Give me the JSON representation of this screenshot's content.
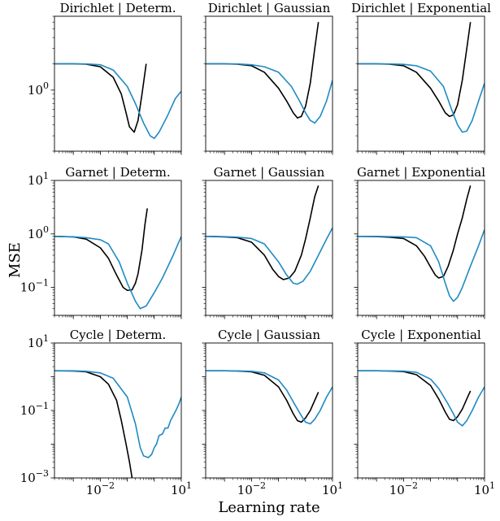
{
  "figure": {
    "xlabel": "Learning rate",
    "ylabel": "MSE",
    "xscale": "log",
    "yscale": "log",
    "xlim": [
      0.0002,
      10
    ],
    "colors": {
      "series_a": "#000000",
      "series_b": "#1f8ac4"
    }
  },
  "chart_data": [
    {
      "type": "line",
      "title": "Dirichlet | Determ.",
      "ylim": [
        0.2,
        7
      ],
      "yticks": [
        {
          "value": 1,
          "label": "10^0"
        }
      ],
      "xticks": [],
      "series": [
        {
          "color": "#000000",
          "x": [
            0.0002,
            0.001,
            0.003,
            0.01,
            0.03,
            0.06,
            0.09,
            0.12,
            0.18,
            0.25,
            0.35,
            0.5
          ],
          "y": [
            2.0,
            2.0,
            1.98,
            1.85,
            1.4,
            0.9,
            0.55,
            0.38,
            0.33,
            0.45,
            0.9,
            2.0
          ]
        },
        {
          "color": "#1f8ac4",
          "x": [
            0.0002,
            0.001,
            0.003,
            0.01,
            0.03,
            0.1,
            0.2,
            0.4,
            0.7,
            1.0,
            1.5,
            3,
            6,
            10
          ],
          "y": [
            2.0,
            2.0,
            1.99,
            1.95,
            1.7,
            1.1,
            0.7,
            0.42,
            0.3,
            0.28,
            0.33,
            0.5,
            0.8,
            0.97
          ]
        }
      ]
    },
    {
      "type": "line",
      "title": "Dirichlet | Gaussian",
      "ylim": [
        0.2,
        7
      ],
      "yticks": [],
      "xticks": [],
      "series": [
        {
          "color": "#000000",
          "x": [
            0.0002,
            0.001,
            0.003,
            0.01,
            0.03,
            0.1,
            0.2,
            0.35,
            0.5,
            0.7,
            1.0,
            1.5,
            2.2,
            3.0
          ],
          "y": [
            2.0,
            2.0,
            1.98,
            1.9,
            1.6,
            1.05,
            0.75,
            0.55,
            0.48,
            0.5,
            0.65,
            1.2,
            3.0,
            6.0
          ]
        },
        {
          "color": "#1f8ac4",
          "x": [
            0.0002,
            0.001,
            0.003,
            0.01,
            0.03,
            0.1,
            0.3,
            0.6,
            1.0,
            1.5,
            2.2,
            3.5,
            6,
            10
          ],
          "y": [
            2.0,
            2.0,
            1.99,
            1.95,
            1.85,
            1.6,
            1.1,
            0.75,
            0.55,
            0.45,
            0.42,
            0.5,
            0.75,
            1.3
          ]
        }
      ]
    },
    {
      "type": "line",
      "title": "Dirichlet | Exponential",
      "ylim": [
        0.2,
        7
      ],
      "yticks": [],
      "xticks": [],
      "series": [
        {
          "color": "#000000",
          "x": [
            0.0002,
            0.001,
            0.003,
            0.01,
            0.03,
            0.1,
            0.2,
            0.35,
            0.5,
            0.7,
            1.0,
            1.5,
            2.2,
            3.0
          ],
          "y": [
            2.0,
            2.0,
            1.98,
            1.9,
            1.6,
            1.05,
            0.75,
            0.55,
            0.5,
            0.52,
            0.68,
            1.3,
            3.0,
            6.0
          ]
        },
        {
          "color": "#1f8ac4",
          "x": [
            0.0002,
            0.001,
            0.003,
            0.01,
            0.03,
            0.1,
            0.3,
            0.6,
            1.0,
            1.5,
            2.2,
            3.5,
            6,
            10
          ],
          "y": [
            2.0,
            2.0,
            1.99,
            1.97,
            1.9,
            1.65,
            1.1,
            0.6,
            0.4,
            0.33,
            0.34,
            0.45,
            0.75,
            1.2
          ]
        }
      ]
    },
    {
      "type": "line",
      "title": "Garnet | Determ.",
      "ylim": [
        0.03,
        10
      ],
      "yticks": [
        {
          "value": 10,
          "label": "10^1"
        },
        {
          "value": 1,
          "label": "10^0"
        },
        {
          "value": 0.1,
          "label": "10^-1"
        }
      ],
      "xticks": [],
      "series": [
        {
          "color": "#000000",
          "x": [
            0.0002,
            0.001,
            0.003,
            0.01,
            0.02,
            0.04,
            0.07,
            0.1,
            0.15,
            0.2,
            0.25,
            0.35,
            0.45,
            0.55
          ],
          "y": [
            0.9,
            0.88,
            0.8,
            0.55,
            0.35,
            0.17,
            0.1,
            0.088,
            0.09,
            0.12,
            0.18,
            0.5,
            1.5,
            3.0
          ]
        },
        {
          "color": "#1f8ac4",
          "x": [
            0.0002,
            0.001,
            0.003,
            0.01,
            0.02,
            0.05,
            0.1,
            0.2,
            0.3,
            0.5,
            1,
            2,
            5,
            10
          ],
          "y": [
            0.9,
            0.88,
            0.85,
            0.78,
            0.65,
            0.3,
            0.12,
            0.055,
            0.04,
            0.045,
            0.08,
            0.15,
            0.4,
            0.9
          ]
        }
      ]
    },
    {
      "type": "line",
      "title": "Garnet | Gaussian",
      "ylim": [
        0.03,
        10
      ],
      "yticks": [],
      "xticks": [],
      "series": [
        {
          "color": "#000000",
          "x": [
            0.0002,
            0.001,
            0.003,
            0.01,
            0.03,
            0.06,
            0.1,
            0.15,
            0.25,
            0.4,
            0.7,
            1.0,
            1.5,
            2.2,
            3.0
          ],
          "y": [
            0.9,
            0.88,
            0.85,
            0.7,
            0.4,
            0.22,
            0.16,
            0.14,
            0.15,
            0.2,
            0.4,
            0.8,
            2.0,
            5.0,
            8.0
          ]
        },
        {
          "color": "#1f8ac4",
          "x": [
            0.0002,
            0.001,
            0.003,
            0.01,
            0.03,
            0.1,
            0.2,
            0.35,
            0.5,
            0.8,
            1.5,
            3,
            6,
            10
          ],
          "y": [
            0.9,
            0.89,
            0.87,
            0.82,
            0.65,
            0.3,
            0.17,
            0.12,
            0.115,
            0.13,
            0.2,
            0.4,
            0.8,
            1.3
          ]
        }
      ]
    },
    {
      "type": "line",
      "title": "Garnet | Exponential",
      "ylim": [
        0.03,
        10
      ],
      "yticks": [],
      "xticks": [],
      "series": [
        {
          "color": "#000000",
          "x": [
            0.0002,
            0.001,
            0.003,
            0.01,
            0.03,
            0.06,
            0.1,
            0.15,
            0.2,
            0.3,
            0.45,
            0.7,
            1.0,
            1.5,
            2.2,
            3.0
          ],
          "y": [
            0.9,
            0.89,
            0.87,
            0.82,
            0.6,
            0.38,
            0.24,
            0.17,
            0.15,
            0.16,
            0.25,
            0.5,
            1.0,
            2.0,
            4.5,
            8.0
          ]
        },
        {
          "color": "#1f8ac4",
          "x": [
            0.0002,
            0.001,
            0.003,
            0.01,
            0.03,
            0.1,
            0.2,
            0.35,
            0.5,
            0.7,
            1.0,
            1.5,
            3,
            6,
            10
          ],
          "y": [
            0.9,
            0.9,
            0.89,
            0.88,
            0.85,
            0.6,
            0.3,
            0.12,
            0.07,
            0.055,
            0.065,
            0.1,
            0.25,
            0.6,
            1.2
          ]
        }
      ]
    },
    {
      "type": "line",
      "title": "Cycle | Determ.",
      "ylim": [
        0.001,
        10
      ],
      "yticks": [
        {
          "value": 10,
          "label": "10^1"
        },
        {
          "value": 0.1,
          "label": "10^-1"
        },
        {
          "value": 0.001,
          "label": "10^-3"
        }
      ],
      "xticks": [
        {
          "value": 0.01,
          "label": "10^-2"
        },
        {
          "value": 10,
          "label": "10^1"
        }
      ],
      "series": [
        {
          "color": "#000000",
          "x": [
            0.0002,
            0.001,
            0.003,
            0.01,
            0.02,
            0.04,
            0.06,
            0.09,
            0.12,
            0.15
          ],
          "y": [
            1.5,
            1.48,
            1.4,
            1.0,
            0.6,
            0.2,
            0.05,
            0.01,
            0.003,
            0.001
          ]
        },
        {
          "color": "#1f8ac4",
          "x": [
            0.0002,
            0.001,
            0.003,
            0.01,
            0.03,
            0.1,
            0.2,
            0.3,
            0.4,
            0.6,
            0.8,
            1.0,
            1.2,
            1.5,
            2.0,
            2.5,
            3.2,
            4.0,
            5.0,
            6.3,
            8.0,
            10
          ],
          "y": [
            1.5,
            1.5,
            1.45,
            1.3,
            0.9,
            0.25,
            0.04,
            0.008,
            0.0045,
            0.004,
            0.005,
            0.008,
            0.01,
            0.018,
            0.02,
            0.03,
            0.03,
            0.05,
            0.07,
            0.1,
            0.15,
            0.25
          ]
        }
      ]
    },
    {
      "type": "line",
      "title": "Cycle | Gaussian",
      "ylim": [
        0.001,
        10
      ],
      "yticks": [],
      "xticks": [
        {
          "value": 0.01,
          "label": "10^-2"
        },
        {
          "value": 10,
          "label": "10^1"
        }
      ],
      "series": [
        {
          "color": "#000000",
          "x": [
            0.0002,
            0.001,
            0.003,
            0.01,
            0.03,
            0.1,
            0.2,
            0.35,
            0.5,
            0.7,
            1.0,
            1.5,
            2.2,
            3.0
          ],
          "y": [
            1.5,
            1.5,
            1.48,
            1.4,
            1.1,
            0.5,
            0.2,
            0.08,
            0.05,
            0.045,
            0.06,
            0.1,
            0.2,
            0.35
          ]
        },
        {
          "color": "#1f8ac4",
          "x": [
            0.0002,
            0.001,
            0.003,
            0.01,
            0.03,
            0.1,
            0.2,
            0.4,
            0.7,
            1.0,
            1.5,
            2.2,
            3.5,
            6,
            10
          ],
          "y": [
            1.5,
            1.5,
            1.49,
            1.45,
            1.3,
            0.8,
            0.4,
            0.15,
            0.07,
            0.045,
            0.04,
            0.055,
            0.1,
            0.25,
            0.5
          ]
        }
      ]
    },
    {
      "type": "line",
      "title": "Cycle | Exponential",
      "ylim": [
        0.001,
        10
      ],
      "yticks": [],
      "xticks": [
        {
          "value": 0.01,
          "label": "10^-2"
        },
        {
          "value": 10,
          "label": "10^1"
        }
      ],
      "series": [
        {
          "color": "#000000",
          "x": [
            0.0002,
            0.001,
            0.003,
            0.01,
            0.03,
            0.1,
            0.2,
            0.35,
            0.5,
            0.7,
            1.0,
            1.5,
            2.2,
            3.0
          ],
          "y": [
            1.5,
            1.5,
            1.48,
            1.42,
            1.15,
            0.55,
            0.22,
            0.09,
            0.055,
            0.05,
            0.065,
            0.11,
            0.22,
            0.38
          ]
        },
        {
          "color": "#1f8ac4",
          "x": [
            0.0002,
            0.001,
            0.003,
            0.01,
            0.03,
            0.1,
            0.2,
            0.4,
            0.7,
            1.0,
            1.5,
            2.2,
            3.5,
            6,
            10
          ],
          "y": [
            1.5,
            1.5,
            1.49,
            1.47,
            1.35,
            0.85,
            0.45,
            0.18,
            0.08,
            0.045,
            0.035,
            0.05,
            0.1,
            0.25,
            0.5
          ]
        }
      ]
    }
  ]
}
